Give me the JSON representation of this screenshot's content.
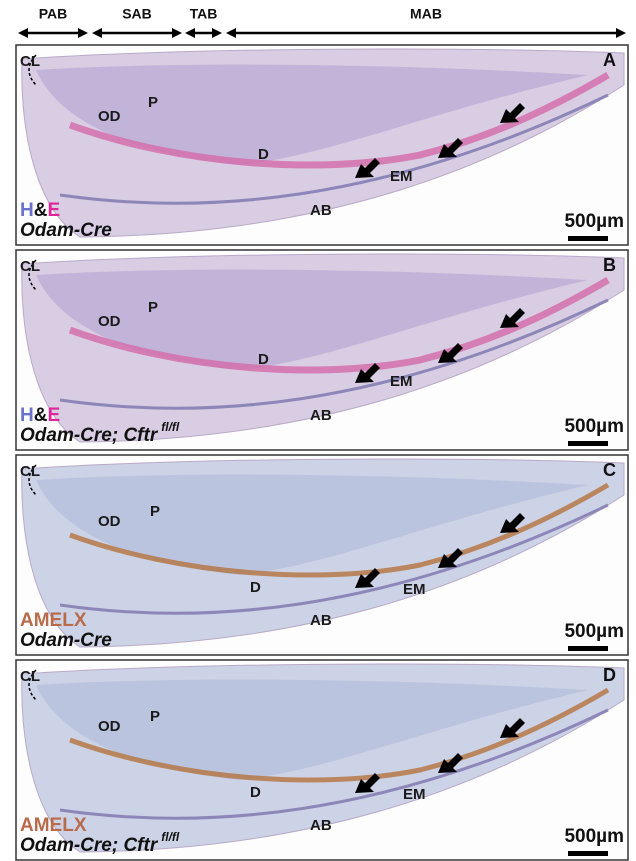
{
  "header": {
    "zones": [
      "PAB",
      "SAB",
      "TAB",
      "MAB"
    ]
  },
  "panels": [
    {
      "letter": "A",
      "labels": [
        "CL",
        "OD",
        "P",
        "D",
        "EM",
        "AB"
      ],
      "stain": [
        "H",
        "&",
        "E"
      ],
      "genotype": "Odam-Cre",
      "scale": "500µm"
    },
    {
      "letter": "B",
      "labels": [
        "CL",
        "OD",
        "P",
        "D",
        "EM",
        "AB"
      ],
      "stain": [
        "H",
        "&",
        "E"
      ],
      "genotype": "Odam-Cre; Cftr",
      "genotype_sup": "fl/fl",
      "scale": "500µm"
    },
    {
      "letter": "C",
      "labels": [
        "CL",
        "OD",
        "P",
        "D",
        "EM",
        "AB"
      ],
      "stain": [
        "AMELX"
      ],
      "genotype": "Odam-Cre",
      "scale": "500µm"
    },
    {
      "letter": "D",
      "labels": [
        "CL",
        "OD",
        "P",
        "D",
        "EM",
        "AB"
      ],
      "stain": [
        "AMELX"
      ],
      "genotype": "Odam-Cre; Cftr",
      "genotype_sup": "fl/fl",
      "scale": "500µm"
    }
  ]
}
